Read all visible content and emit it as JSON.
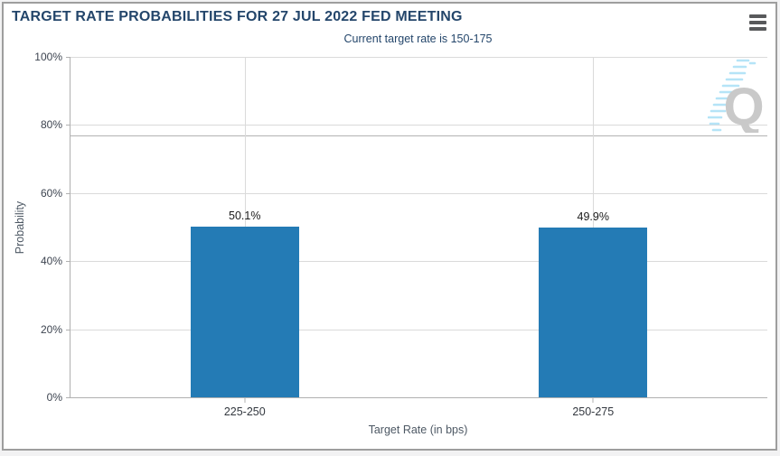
{
  "chart_data": {
    "type": "bar",
    "title": "TARGET RATE PROBABILITIES FOR 27 JUL 2022 FED MEETING",
    "subtitle": "Current target rate is 150-175",
    "categories": [
      "225-250",
      "250-275"
    ],
    "values": [
      50.1,
      49.9
    ],
    "value_labels": [
      "50.1%",
      "49.9%"
    ],
    "xlabel": "Target Rate (in bps)",
    "ylabel": "Probability",
    "ylim": [
      0,
      100
    ],
    "ytick_step": 20,
    "ytick_labels": [
      "0%",
      "20%",
      "40%",
      "60%",
      "80%",
      "100%"
    ],
    "reference_line_value": 77,
    "grid": true,
    "legend": "none",
    "bar_color": "#247BB5"
  },
  "menu": {
    "icon": "hamburger-icon"
  },
  "watermark": {
    "letter": "Q"
  },
  "colors": {
    "accent_navy": "#24466B",
    "bar_blue": "#247BB5",
    "panel_border": "#9E9E9E",
    "page_background": "#F2F2F3",
    "watermark_gray": "#C9C9C9",
    "watermark_blue": "#B5E4F7"
  }
}
